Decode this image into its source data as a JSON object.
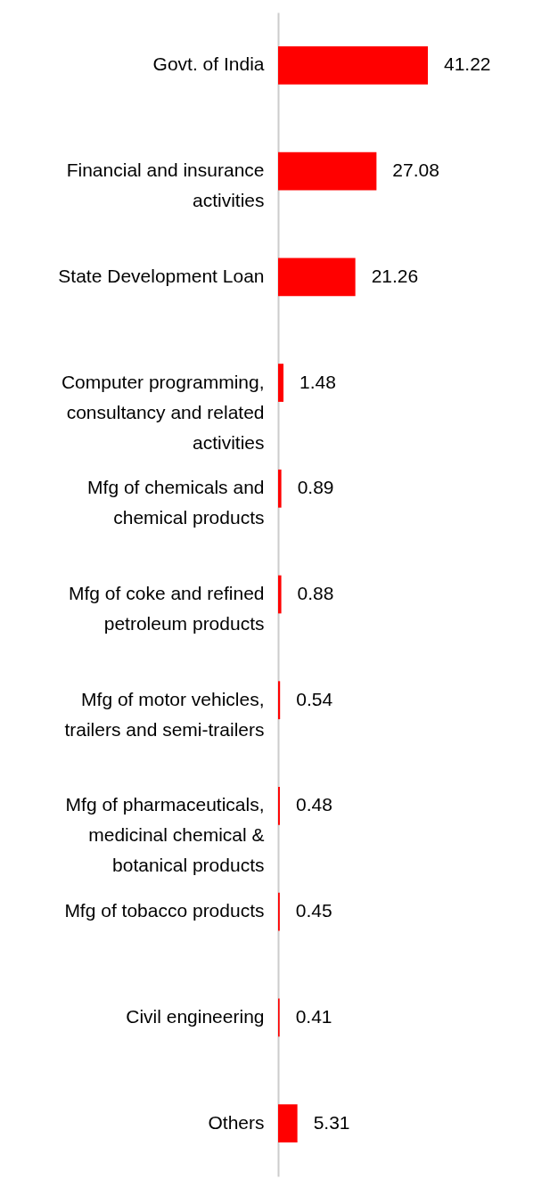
{
  "chart_data": {
    "type": "bar",
    "orientation": "horizontal",
    "data_labels": true,
    "color": "#ff0000",
    "categories": [
      "Govt. of India",
      "Financial and insurance activities",
      "State Development Loan",
      "Computer programming, consultancy and related activities",
      "Mfg of chemicals and chemical products",
      "Mfg of coke and refined petroleum products",
      "Mfg of motor vehicles, trailers and semi-trailers",
      "Mfg of pharmaceuticals, medicinal chemical & botanical products",
      "Mfg of tobacco products",
      "Civil engineering",
      "Others"
    ],
    "values": [
      41.22,
      27.08,
      21.26,
      1.48,
      0.89,
      0.88,
      0.54,
      0.48,
      0.45,
      0.41,
      5.31
    ]
  }
}
